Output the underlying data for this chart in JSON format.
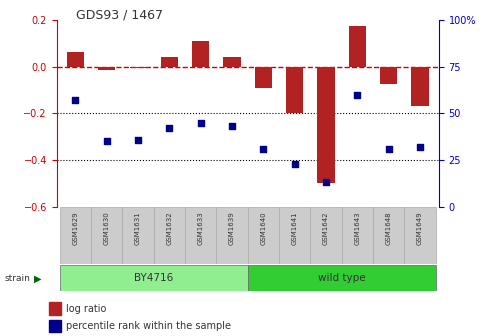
{
  "title": "GDS93 / 1467",
  "samples": [
    "GSM1629",
    "GSM1630",
    "GSM1631",
    "GSM1632",
    "GSM1633",
    "GSM1639",
    "GSM1640",
    "GSM1641",
    "GSM1642",
    "GSM1643",
    "GSM1648",
    "GSM1649"
  ],
  "log_ratio": [
    0.065,
    -0.012,
    -0.005,
    0.04,
    0.11,
    0.04,
    -0.09,
    -0.2,
    -0.5,
    0.175,
    -0.075,
    -0.17
  ],
  "percentile_rank": [
    57,
    35,
    36,
    42,
    45,
    43,
    31,
    23,
    13,
    60,
    31,
    32
  ],
  "bar_color": "#b22222",
  "dot_color": "#00008b",
  "dashed_color": "#cc0000",
  "dotted_color": "#000000",
  "left_ylim": [
    -0.6,
    0.2
  ],
  "right_ylim": [
    0,
    100
  ],
  "left_yticks": [
    -0.6,
    -0.4,
    -0.2,
    0.0,
    0.2
  ],
  "right_yticks": [
    0,
    25,
    50,
    75,
    100
  ],
  "right_yticklabels": [
    "0",
    "25",
    "50",
    "75",
    "100%"
  ],
  "by_color": "#90EE90",
  "wt_color": "#32CD32",
  "bar_width": 0.55,
  "dot_size": 18,
  "background_color": "#ffffff",
  "plot_bg_color": "#ffffff",
  "left_axis_color": "#cc0000",
  "right_axis_color": "#0000cc",
  "label_box_color": "#cccccc",
  "label_box_edge": "#aaaaaa",
  "label_font_size": 5.0,
  "title_font_size": 9,
  "axis_font_size": 7,
  "legend_font_size": 7
}
